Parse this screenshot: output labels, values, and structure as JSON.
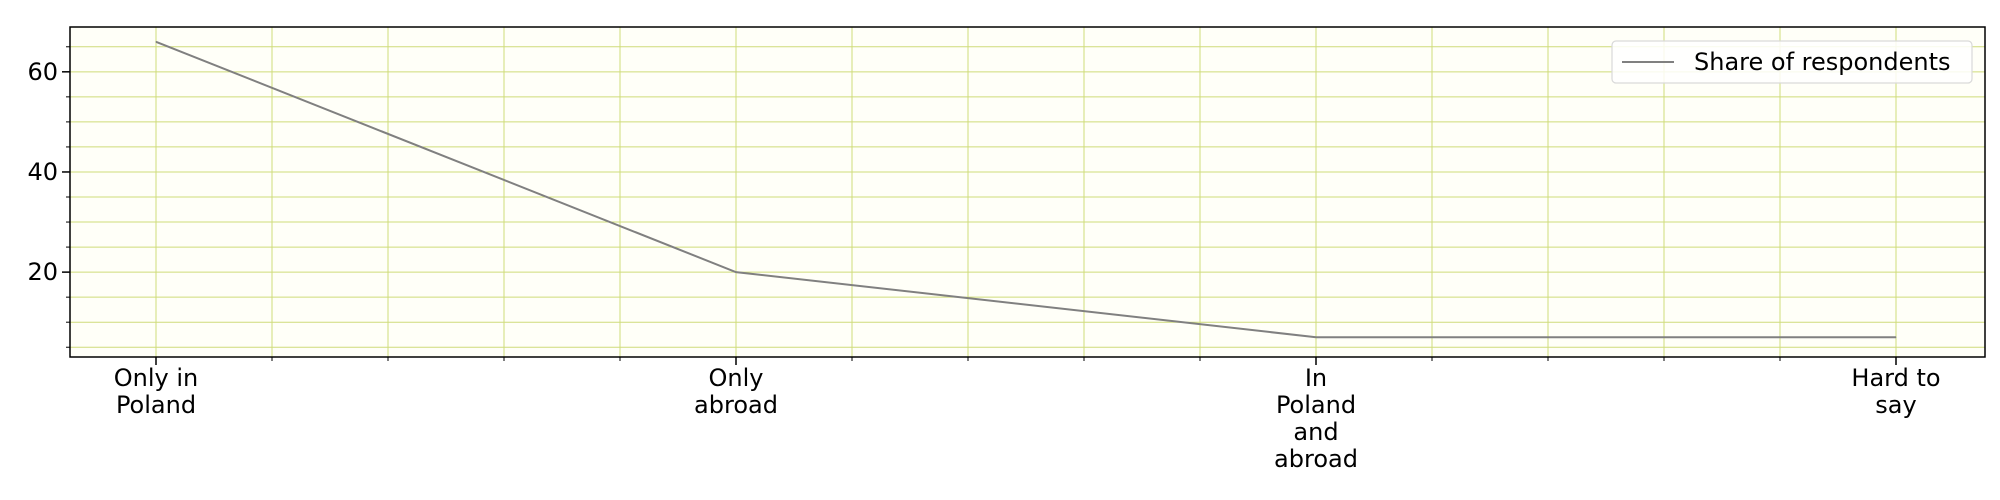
{
  "chart_data": {
    "type": "line",
    "title": "",
    "xlabel": "",
    "ylabel": "",
    "categories": [
      "Only in Poland",
      "Only abroad",
      "In Poland and abroad",
      "Hard to say"
    ],
    "category_label_lines": [
      [
        "Only in",
        "Poland"
      ],
      [
        "Only",
        "abroad"
      ],
      [
        "In",
        "Poland",
        "and",
        "abroad"
      ],
      [
        "Hard to",
        "say"
      ]
    ],
    "series": [
      {
        "name": "Share of respondents",
        "values": [
          66,
          20,
          7,
          7
        ],
        "color": "#808080"
      }
    ],
    "ylim": [
      3.05,
      68.95
    ],
    "yticks": [
      20,
      40,
      60
    ],
    "ytick_labels": [
      "20",
      "40",
      "60"
    ],
    "grid": true,
    "grid_color": "#cfdc7a",
    "plot_background": "#fffff8",
    "legend": {
      "position": "top-right",
      "label": "Share of respondents"
    }
  }
}
